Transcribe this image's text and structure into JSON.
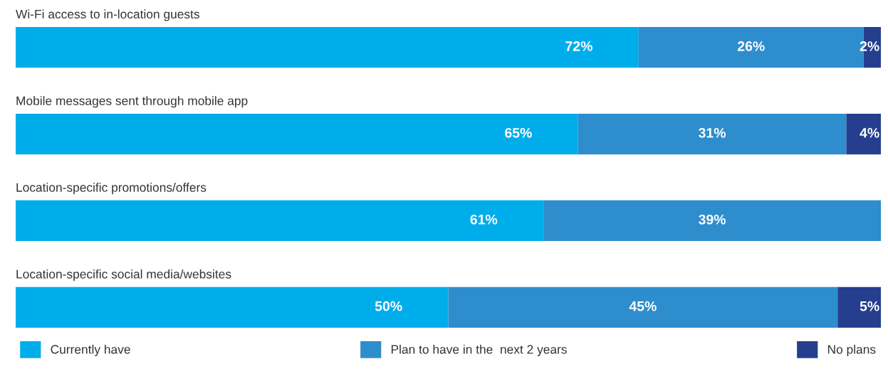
{
  "chart_data": {
    "type": "bar",
    "orientation": "horizontal",
    "stacked": true,
    "legend": "bottom",
    "categories": [
      "Wi-Fi access to in-location guests",
      "Mobile messages sent through mobile app",
      "Location-specific promotions/offers",
      "Location-specific social media/websites"
    ],
    "series": [
      {
        "name": "Currently have",
        "color": "#00adeb",
        "values": [
          72,
          65,
          61,
          50
        ],
        "value_labels": [
          "72%",
          "65%",
          "61%",
          "50%"
        ]
      },
      {
        "name": "Plan to have in the  next 2 years",
        "color": "#2e8dcd",
        "values": [
          26,
          31,
          39,
          45
        ],
        "value_labels": [
          "26%",
          "31%",
          "39%",
          "45%"
        ]
      },
      {
        "name": "No plans",
        "color": "#253f8e",
        "values": [
          2,
          4,
          null,
          5
        ],
        "value_labels": [
          "2%",
          "4%",
          null,
          "5%"
        ]
      }
    ]
  }
}
